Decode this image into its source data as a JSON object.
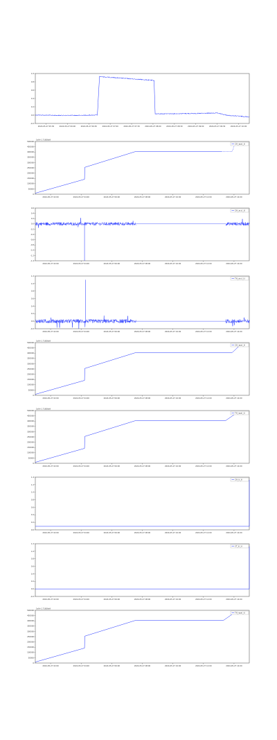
{
  "chart_data": [
    {
      "type": "line",
      "x_tick_labels": [
        "2024-05-27 05:30",
        "2024-05-27 06:00",
        "2024-05-27 06:30",
        "2024-05-27 07:00",
        "2024-05-27 07:30",
        "2024-05-27 08:00",
        "2024-05-27 08:30",
        "2024-05-27 09:00",
        "2024-05-27 09:30",
        "2024-05-27 10:00"
      ],
      "y_tick_labels": [
        "1.0",
        "0.8",
        "0.6",
        "0.4",
        "0.2",
        "0.0",
        "-0.2"
      ],
      "ylim": [
        -0.2,
        1.1
      ],
      "color": "#1a2dff",
      "noise": 0.012,
      "series": [
        {
          "x": [
            0.0,
            0.1,
            0.2,
            0.29,
            0.3,
            0.555,
            0.56,
            0.75,
            0.85,
            0.9,
            1.0
          ],
          "y": [
            0.02,
            0.01,
            0.01,
            0.02,
            1.02,
            0.92,
            0.05,
            0.06,
            0.07,
            0.01,
            -0.03
          ]
        }
      ]
    },
    {
      "type": "line",
      "offset_label": "1e9+1.71656e9",
      "legend": "CH_eps(_t)",
      "x_tick_labels": [
        "2024-05-27 02:00",
        "2024-05-27 04:00",
        "2024-05-27 06:00",
        "2024-05-27 08:00",
        "2024-05-27 10:00",
        "2024-05-27 12:00",
        "2024-05-27 14:00"
      ],
      "y_tick_labels": [
        "500000",
        "450000",
        "400000",
        "350000",
        "300000",
        "250000",
        "200000",
        "150000",
        "100000",
        "50000",
        "0"
      ],
      "ylim": [
        -10000,
        520000
      ],
      "color": "#1a2dff",
      "series": [
        {
          "x": [
            0.0,
            0.23,
            0.231,
            0.47,
            0.87,
            0.92,
            0.93
          ],
          "y": [
            0,
            140000,
            260000,
            420000,
            420000,
            420000,
            480000
          ],
          "dashed_from": 4
        }
      ]
    },
    {
      "type": "line",
      "legend": "CH_acc(_t)",
      "x_tick_labels": [
        "2024-05-27 02:00",
        "2024-05-27 04:00",
        "2024-05-27 06:00",
        "2024-05-27 08:00",
        "2024-05-27 10:00",
        "2024-05-27 12:00",
        "2024-05-27 14:00"
      ],
      "y_tick_labels": [
        "0.6",
        "0.4",
        "0.2",
        "0.0",
        "-0.2",
        "-0.4",
        "-0.6",
        "-0.8",
        "-1.0",
        "-1.2",
        "-1.4"
      ],
      "ylim": [
        -1.4,
        0.6
      ],
      "color": "#1a2dff",
      "baseline": 0.0,
      "noise": 0.06,
      "segments": [
        [
          0.0,
          0.47
        ],
        [
          0.89,
          1.0
        ]
      ],
      "spikes": [
        {
          "x": 0.23,
          "y": -1.4
        }
      ]
    },
    {
      "type": "line",
      "legend": "TH_acc(_t)",
      "x_tick_labels": [
        "2024-05-27 02:00",
        "2024-05-27 04:00",
        "2024-05-27 06:00",
        "2024-05-27 08:00",
        "2024-05-27 10:00",
        "2024-05-27 12:00",
        "2024-05-27 14:00"
      ],
      "y_tick_labels": [
        "1.2",
        "1.0",
        "0.8",
        "0.6",
        "0.4",
        "0.2",
        "0.0",
        "-0.2"
      ],
      "ylim": [
        -0.2,
        1.2
      ],
      "color": "#1a2dff",
      "baseline": 0.0,
      "noise": 0.05,
      "segments": [
        [
          0.0,
          0.47
        ],
        [
          0.89,
          1.0
        ]
      ],
      "spikes": [
        {
          "x": 0.235,
          "y": 1.1
        }
      ]
    },
    {
      "type": "line",
      "offset_label": "1e9+1.71656e9",
      "legend": "CH_eps(_t)",
      "x_tick_labels": [
        "2024-05-27 02:00",
        "2024-05-27 04:00",
        "2024-05-27 06:00",
        "2024-05-27 08:00",
        "2024-05-27 10:00",
        "2024-05-27 12:00",
        "2024-05-27 14:00"
      ],
      "y_tick_labels": [
        "500000",
        "450000",
        "400000",
        "350000",
        "300000",
        "250000",
        "200000",
        "150000",
        "100000",
        "50000",
        "0"
      ],
      "ylim": [
        -10000,
        520000
      ],
      "color": "#1a2dff",
      "series": [
        {
          "x": [
            0.0,
            0.23,
            0.231,
            0.47,
            0.92,
            0.95
          ],
          "y": [
            0,
            140000,
            260000,
            420000,
            420000,
            480000
          ]
        }
      ]
    },
    {
      "type": "line",
      "offset_label": "1e9+1.71656e9",
      "legend": "TH_eps(_t)",
      "x_tick_labels": [
        "2024-05-27 02:00",
        "2024-05-27 04:00",
        "2024-05-27 06:00",
        "2024-05-27 08:00",
        "2024-05-27 10:00",
        "2024-05-27 12:00",
        "2024-05-27 14:00"
      ],
      "y_tick_labels": [
        "500000",
        "450000",
        "400000",
        "350000",
        "300000",
        "250000",
        "200000",
        "150000",
        "100000",
        "50000",
        "0"
      ],
      "ylim": [
        -10000,
        520000
      ],
      "color": "#1a2dff",
      "series": [
        {
          "x": [
            0.0,
            0.23,
            0.231,
            0.47,
            0.89,
            0.93
          ],
          "y": [
            0,
            140000,
            260000,
            420000,
            420000,
            480000
          ]
        }
      ]
    },
    {
      "type": "line",
      "legend": "CH_t(_t)",
      "x_tick_labels": [
        "2024-05-27 02:00",
        "2024-05-27 04:00",
        "2024-05-27 06:00",
        "2024-05-27 08:00",
        "2024-05-27 10:00",
        "2024-05-27 12:00",
        "2024-05-27 14:00"
      ],
      "y_tick_labels": [
        "1.4",
        "1.2",
        "1.0",
        "0.8",
        "0.6",
        "0.4",
        "0.2",
        "0.0"
      ],
      "ylim": [
        -0.1,
        1.4
      ],
      "color": "#1a2dff",
      "series": [
        {
          "x": [
            0.0,
            0.99,
            1.0
          ],
          "y": [
            0.0,
            0.0,
            0.0
          ]
        }
      ],
      "end_spike": true
    },
    {
      "type": "line",
      "legend": "CT_t(_t)",
      "x_tick_labels": [
        "2024-05-27 02:00",
        "2024-05-27 04:00",
        "2024-05-27 06:00",
        "2024-05-27 08:00",
        "2024-05-27 10:00",
        "2024-05-27 12:00",
        "2024-05-27 14:00"
      ],
      "y_tick_labels": [
        "1.2",
        "1.0",
        "0.8",
        "0.6",
        "0.4",
        "0.2",
        "0.0",
        "-0.2"
      ],
      "ylim": [
        -0.2,
        1.2
      ],
      "color": "#1a2dff",
      "series": [
        {
          "x": [
            0.0,
            0.99,
            1.0
          ],
          "y": [
            0.0,
            0.0,
            0.0
          ]
        }
      ],
      "end_spike": true
    },
    {
      "type": "line",
      "offset_label": "1e9+1.71656e9",
      "legend": "TH_eps(_t)",
      "x_tick_labels": [
        "2024-05-27 02:00",
        "2024-05-27 04:00",
        "2024-05-27 06:00",
        "2024-05-27 08:00",
        "2024-05-27 10:00",
        "2024-05-27 12:00",
        "2024-05-27 14:00"
      ],
      "y_tick_labels": [
        "500000",
        "450000",
        "400000",
        "350000",
        "300000",
        "250000",
        "200000",
        "150000",
        "100000",
        "50000",
        "0"
      ],
      "ylim": [
        -10000,
        520000
      ],
      "color": "#1a2dff",
      "series": [
        {
          "x": [
            0.0,
            0.23,
            0.231,
            0.47,
            0.88,
            0.92
          ],
          "y": [
            0,
            140000,
            260000,
            420000,
            420000,
            480000
          ]
        }
      ]
    }
  ]
}
